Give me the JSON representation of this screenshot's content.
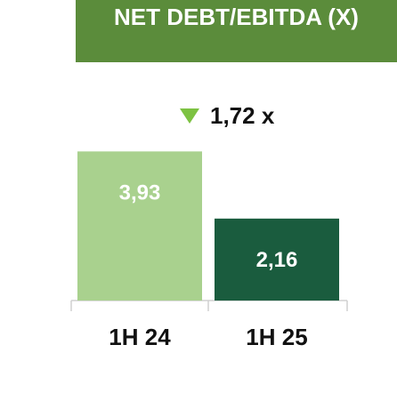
{
  "chart_data": {
    "type": "bar",
    "title": "NET DEBT/EBITDA (X)",
    "annotation": "1,72 x",
    "categories": [
      "1H 24",
      "1H 25"
    ],
    "values": [
      3.93,
      2.16
    ],
    "value_labels": [
      "3,93",
      "2,16"
    ],
    "colors": [
      "#a9d18e",
      "#1a5c3e"
    ],
    "ylim": [
      0,
      4.5
    ]
  }
}
